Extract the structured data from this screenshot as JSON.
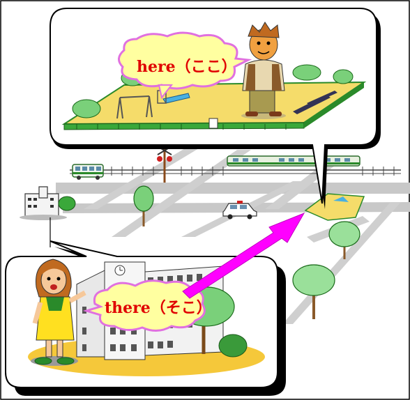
{
  "labels": {
    "here": "here（ここ）",
    "there": "there（そこ）"
  },
  "colors": {
    "bubble_fill": "#ffffa0",
    "bubble_edge": "#e070e0",
    "label_text": "#e00000",
    "arrow": "#ff00ff",
    "park_ground": "#f5dc6a",
    "grass": "#3aa83a",
    "road": "#c8c8c8"
  }
}
